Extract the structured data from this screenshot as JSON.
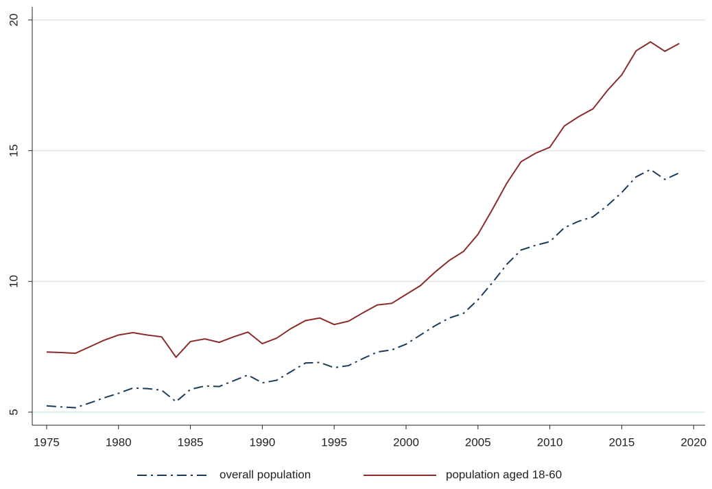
{
  "chart_data": {
    "type": "line",
    "x": [
      1975,
      1976,
      1977,
      1978,
      1979,
      1980,
      1981,
      1982,
      1983,
      1984,
      1985,
      1986,
      1987,
      1988,
      1989,
      1990,
      1991,
      1992,
      1993,
      1994,
      1995,
      1996,
      1997,
      1998,
      1999,
      2000,
      2001,
      2002,
      2003,
      2004,
      2005,
      2006,
      2007,
      2008,
      2009,
      2010,
      2011,
      2012,
      2013,
      2014,
      2015,
      2016,
      2017,
      2018,
      2019
    ],
    "series": [
      {
        "name": "overall population",
        "color": "#1a3a5c",
        "line_style": "dashdot",
        "values": [
          5.24,
          5.2,
          5.17,
          5.35,
          5.55,
          5.72,
          5.92,
          5.9,
          5.84,
          5.4,
          5.87,
          6.0,
          5.98,
          6.2,
          6.42,
          6.12,
          6.22,
          6.55,
          6.88,
          6.9,
          6.7,
          6.78,
          7.05,
          7.3,
          7.38,
          7.6,
          7.95,
          8.3,
          8.6,
          8.78,
          9.3,
          9.95,
          10.65,
          11.2,
          11.38,
          11.52,
          12.05,
          12.3,
          12.47,
          12.9,
          13.4,
          14.0,
          14.28,
          13.9,
          14.15
        ]
      },
      {
        "name": "population aged 18-60",
        "color": "#8b2a2a",
        "line_style": "solid",
        "values": [
          7.3,
          7.28,
          7.25,
          7.5,
          7.75,
          7.95,
          8.04,
          7.95,
          7.88,
          7.1,
          7.7,
          7.8,
          7.67,
          7.88,
          8.06,
          7.62,
          7.83,
          8.2,
          8.5,
          8.6,
          8.35,
          8.48,
          8.8,
          9.1,
          9.16,
          9.5,
          9.84,
          10.35,
          10.8,
          11.15,
          11.8,
          12.75,
          13.75,
          14.58,
          14.9,
          15.13,
          15.94,
          16.3,
          16.6,
          17.3,
          17.9,
          18.82,
          19.16,
          18.8,
          19.1
        ]
      }
    ],
    "xlim": [
      1974,
      2020.8
    ],
    "xticks": [
      1975,
      1980,
      1985,
      1990,
      1995,
      2000,
      2005,
      2010,
      2015,
      2020
    ],
    "ylim": [
      4.5,
      20.5
    ],
    "yticks": [
      5,
      10,
      15,
      20
    ],
    "grid": true,
    "legend": "bottom"
  }
}
